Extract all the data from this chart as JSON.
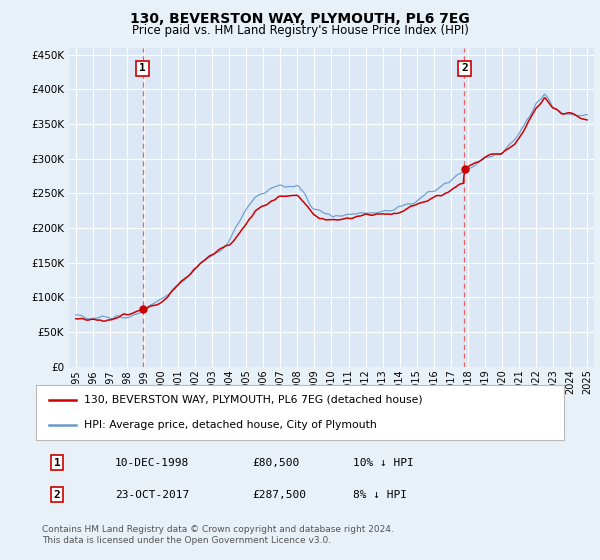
{
  "title": "130, BEVERSTON WAY, PLYMOUTH, PL6 7EG",
  "subtitle": "Price paid vs. HM Land Registry's House Price Index (HPI)",
  "background_color": "#e8f0f8",
  "plot_bg_color": "#dce8f5",
  "grid_color": "#ffffff",
  "ylim": [
    0,
    460000
  ],
  "yticks": [
    0,
    50000,
    100000,
    150000,
    200000,
    250000,
    300000,
    350000,
    400000,
    450000
  ],
  "ytick_labels": [
    "£0",
    "£50K",
    "£100K",
    "£150K",
    "£200K",
    "£250K",
    "£300K",
    "£350K",
    "£400K",
    "£450K"
  ],
  "transaction1": {
    "date_num": 1998.92,
    "price": 80500,
    "label": "1",
    "date_str": "10-DEC-1998",
    "pct": "10% ↓ HPI"
  },
  "transaction2": {
    "date_num": 2017.8,
    "price": 287500,
    "label": "2",
    "date_str": "23-OCT-2017",
    "pct": "8% ↓ HPI"
  },
  "legend_line1": "130, BEVERSTON WAY, PLYMOUTH, PL6 7EG (detached house)",
  "legend_line2": "HPI: Average price, detached house, City of Plymouth",
  "footnote": "Contains HM Land Registry data © Crown copyright and database right 2024.\nThis data is licensed under the Open Government Licence v3.0.",
  "red_color": "#cc0000",
  "blue_color": "#6699cc",
  "dashed_color": "#dd6666",
  "xtick_years": [
    1995,
    1996,
    1997,
    1998,
    1999,
    2000,
    2001,
    2002,
    2003,
    2004,
    2005,
    2006,
    2007,
    2008,
    2009,
    2010,
    2011,
    2012,
    2013,
    2014,
    2015,
    2016,
    2017,
    2018,
    2019,
    2020,
    2021,
    2022,
    2023,
    2024,
    2025
  ],
  "xlim": [
    1994.6,
    2025.4
  ]
}
